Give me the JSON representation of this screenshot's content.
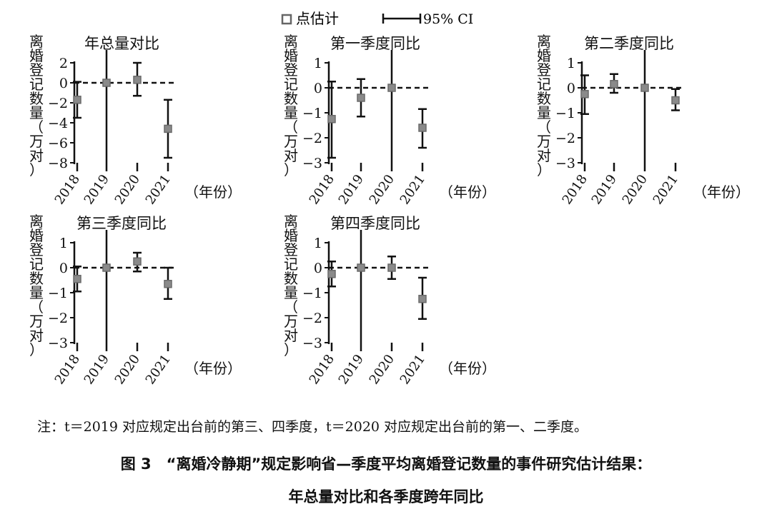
{
  "legend": {
    "point_label": "点估计",
    "ci_label": "95% CI"
  },
  "x_unit": "（年份）",
  "y_label": [
    "离",
    "婚",
    "登",
    "记",
    "数",
    "量",
    "（",
    "万",
    "对",
    "）"
  ],
  "colors": {
    "point": "#8a8a8a",
    "line": "#111111"
  },
  "chart_data": [
    {
      "type": "scatter",
      "title": "年总量对比",
      "categories": [
        "2018",
        "2019",
        "2020",
        "2021"
      ],
      "ylim": [
        -8,
        2
      ],
      "yticks": [
        "2",
        "0",
        "−2",
        "−4",
        "−6",
        "−8"
      ],
      "ytick_values": [
        2,
        0,
        -2,
        -4,
        -6,
        -8
      ],
      "values": [
        -1.7,
        0,
        0.3,
        -4.6
      ],
      "ci_low": [
        -3.5,
        null,
        -1.3,
        -7.5
      ],
      "ci_high": [
        0.1,
        null,
        2.0,
        -1.7
      ],
      "reference_year": "2019",
      "zero_line": "dashed"
    },
    {
      "type": "scatter",
      "title": "第一季度同比",
      "categories": [
        "2018",
        "2019",
        "2020",
        "2021"
      ],
      "ylim": [
        -3,
        1
      ],
      "yticks": [
        "1",
        "0",
        "−1",
        "−2",
        "−3"
      ],
      "ytick_values": [
        1,
        0,
        -1,
        -2,
        -3
      ],
      "values": [
        -1.25,
        -0.4,
        0,
        -1.6
      ],
      "ci_low": [
        -2.8,
        -1.15,
        null,
        -2.4
      ],
      "ci_high": [
        0.25,
        0.35,
        null,
        -0.85
      ],
      "reference_year": "2020",
      "zero_line": "dashed"
    },
    {
      "type": "scatter",
      "title": "第二季度同比",
      "categories": [
        "2018",
        "2019",
        "2020",
        "2021"
      ],
      "ylim": [
        -3,
        1
      ],
      "yticks": [
        "1",
        "0",
        "−1",
        "−2",
        "−3"
      ],
      "ytick_values": [
        1,
        0,
        -1,
        -2,
        -3
      ],
      "values": [
        -0.25,
        0.15,
        0,
        -0.5
      ],
      "ci_low": [
        -1.05,
        -0.2,
        null,
        -0.9
      ],
      "ci_high": [
        0.5,
        0.55,
        null,
        -0.05
      ],
      "reference_year": "2020",
      "zero_line": "dashed"
    },
    {
      "type": "scatter",
      "title": "第三季度同比",
      "categories": [
        "2018",
        "2019",
        "2020",
        "2021"
      ],
      "ylim": [
        -3,
        1
      ],
      "yticks": [
        "1",
        "0",
        "−1",
        "−2",
        "−3"
      ],
      "ytick_values": [
        1,
        0,
        -1,
        -2,
        -3
      ],
      "values": [
        -0.45,
        0,
        0.25,
        -0.65
      ],
      "ci_low": [
        -0.95,
        null,
        -0.15,
        -1.25
      ],
      "ci_high": [
        0.05,
        null,
        0.6,
        0
      ],
      "reference_year": "2019",
      "zero_line": "dashed"
    },
    {
      "type": "scatter",
      "title": "第四季度同比",
      "categories": [
        "2018",
        "2019",
        "2020",
        "2021"
      ],
      "ylim": [
        -3,
        1
      ],
      "yticks": [
        "1",
        "0",
        "−1",
        "−2",
        "−3"
      ],
      "ytick_values": [
        1,
        0,
        -1,
        -2,
        -3
      ],
      "values": [
        -0.25,
        0,
        0,
        -1.25
      ],
      "ci_low": [
        -0.75,
        null,
        -0.45,
        -2.05
      ],
      "ci_high": [
        0.25,
        null,
        0.45,
        -0.4
      ],
      "reference_year": "2019",
      "zero_line": "dashed"
    }
  ],
  "note": "注：t＝2019 对应规定出台前的第三、四季度，t＝2020 对应规定出台前的第一、二季度。",
  "caption_line1": "图 3　“离婚冷静期”规定影响省—季度平均离婚登记数量的事件研究估计结果：",
  "caption_line2": "年总量对比和各季度跨年同比"
}
